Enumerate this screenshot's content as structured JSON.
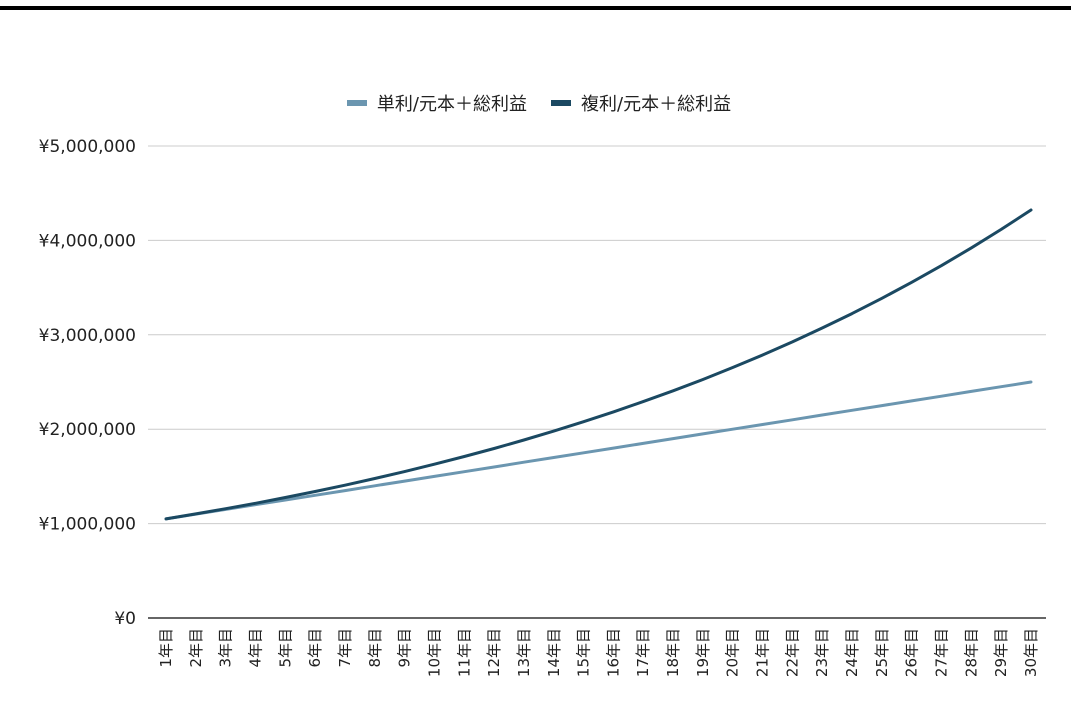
{
  "chart_data": {
    "type": "line",
    "title": "",
    "xlabel": "",
    "ylabel": "",
    "categories": [
      "1年目",
      "2年目",
      "3年目",
      "4年目",
      "5年目",
      "6年目",
      "7年目",
      "8年目",
      "9年目",
      "10年目",
      "11年目",
      "12年目",
      "13年目",
      "14年目",
      "15年目",
      "16年目",
      "17年目",
      "18年目",
      "19年目",
      "20年目",
      "21年目",
      "22年目",
      "23年目",
      "24年目",
      "25年目",
      "26年目",
      "27年目",
      "28年目",
      "29年目",
      "30年目"
    ],
    "y_ticks": [
      {
        "value": 0,
        "label": "¥0"
      },
      {
        "value": 1000000,
        "label": "¥1,000,000"
      },
      {
        "value": 2000000,
        "label": "¥2,000,000"
      },
      {
        "value": 3000000,
        "label": "¥3,000,000"
      },
      {
        "value": 4000000,
        "label": "¥4,000,000"
      },
      {
        "value": 5000000,
        "label": "¥5,000,000"
      }
    ],
    "ylim": [
      0,
      5000000
    ],
    "grid": true,
    "legend_position": "top",
    "series": [
      {
        "name": "単利/元本＋総利益",
        "color": "#6b96b0",
        "values": [
          1050000,
          1100000,
          1150000,
          1200000,
          1250000,
          1300000,
          1350000,
          1400000,
          1450000,
          1500000,
          1550000,
          1600000,
          1650000,
          1700000,
          1750000,
          1800000,
          1850000,
          1900000,
          1950000,
          2000000,
          2050000,
          2100000,
          2150000,
          2200000,
          2250000,
          2300000,
          2350000,
          2400000,
          2450000,
          2500000
        ]
      },
      {
        "name": "複利/元本＋総利益",
        "color": "#1b4962",
        "values": [
          1050000,
          1102500,
          1157625,
          1215506,
          1276282,
          1340096,
          1407100,
          1477455,
          1551328,
          1628895,
          1710339,
          1795856,
          1885649,
          1979932,
          2078928,
          2182875,
          2292018,
          2406619,
          2526950,
          2653298,
          2785963,
          2925261,
          3071524,
          3225100,
          3386355,
          3555673,
          3733456,
          3920129,
          4116136,
          4321942
        ]
      }
    ]
  }
}
